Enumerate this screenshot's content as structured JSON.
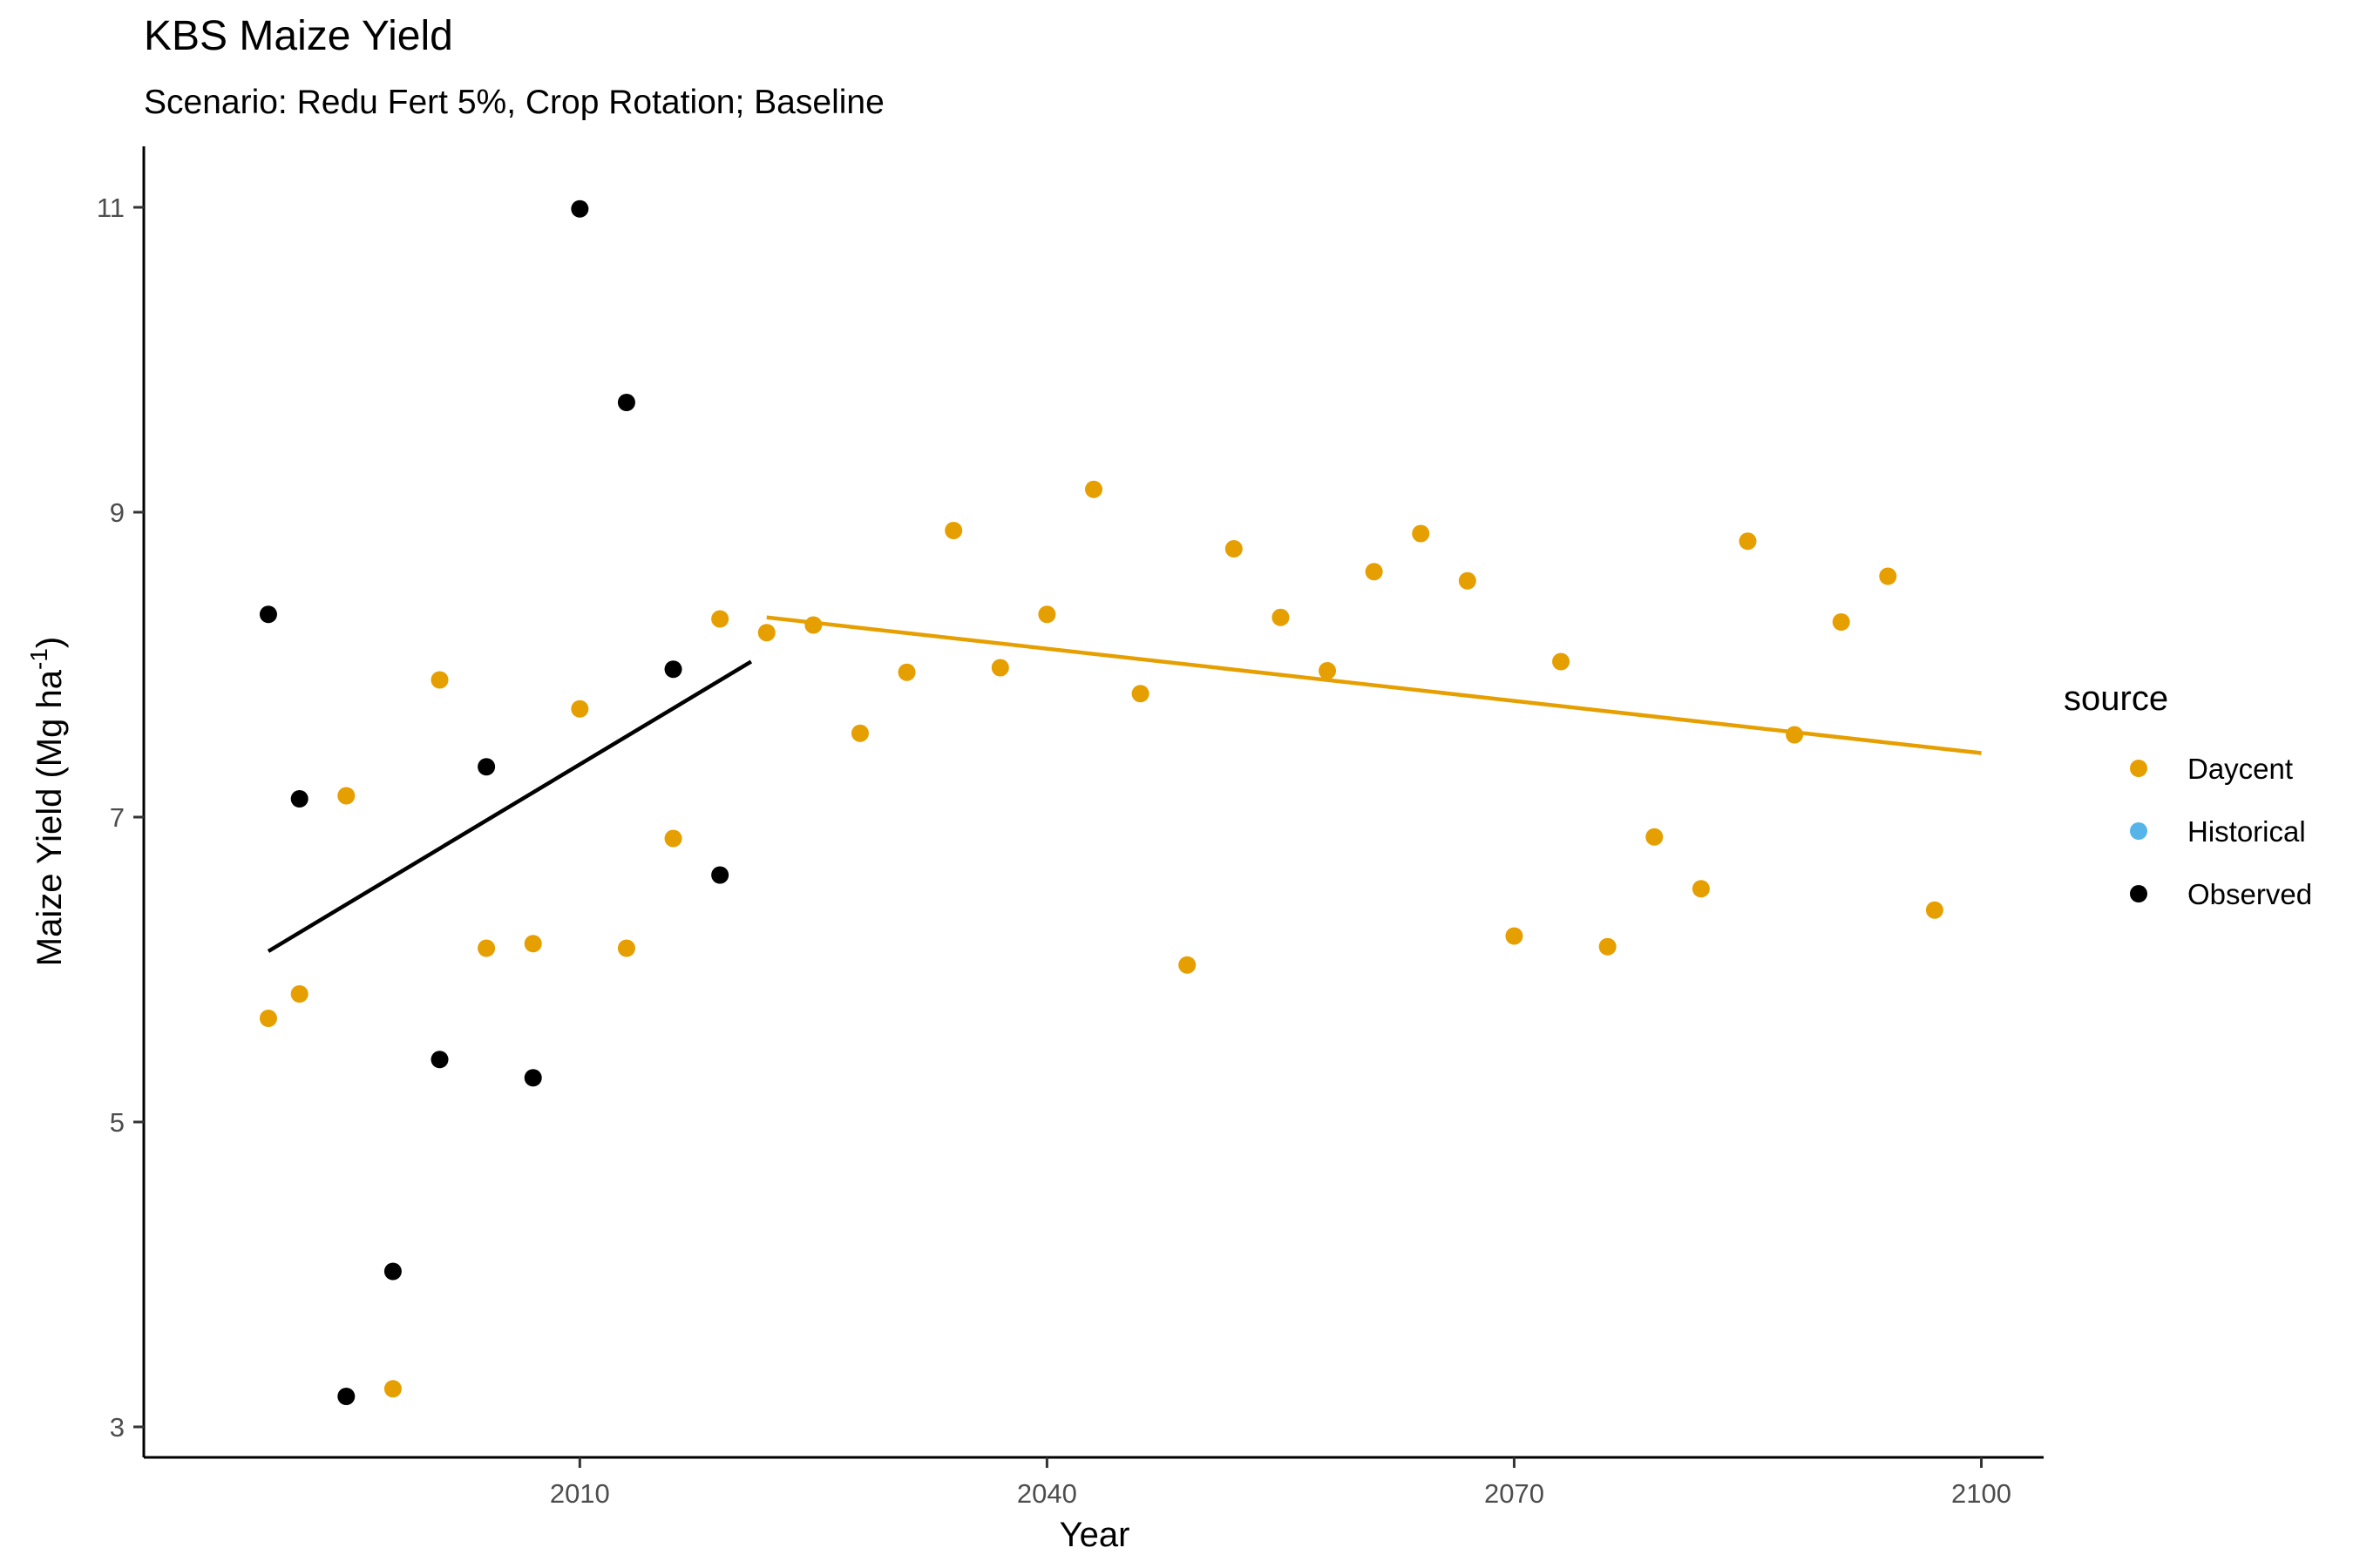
{
  "chart_data": {
    "type": "scatter",
    "title": "KBS Maize Yield",
    "subtitle": "Scenario: Redu Fert 5%, Crop Rotation; Baseline",
    "xlabel": "Year",
    "ylabel": "Maize Yield (Mg ha",
    "ylabel_sup": "-1",
    "ylabel_close": ")",
    "xlim": [
      1982,
      2104
    ],
    "ylim": [
      2.8,
      11.4
    ],
    "x_ticks": [
      2010,
      2040,
      2070,
      2100
    ],
    "y_ticks": [
      3,
      5,
      7,
      9,
      11
    ],
    "grid": false,
    "legend": {
      "title": "source",
      "position": "right",
      "entries": [
        {
          "name": "Daycent",
          "color": "#E69F00"
        },
        {
          "name": "Historical",
          "color": "#56B4E9"
        },
        {
          "name": "Observed",
          "color": "#000000"
        }
      ]
    },
    "series": [
      {
        "name": "Daycent",
        "color": "#E69F00",
        "points": [
          [
            1990,
            5.68
          ],
          [
            1992,
            5.84
          ],
          [
            1995,
            7.14
          ],
          [
            1998,
            3.25
          ],
          [
            2001,
            7.9
          ],
          [
            2004,
            6.14
          ],
          [
            2007,
            6.17
          ],
          [
            2010,
            7.71
          ],
          [
            2013,
            6.14
          ],
          [
            2016,
            6.86
          ],
          [
            2019,
            8.3
          ],
          [
            2022,
            8.21
          ],
          [
            2025,
            8.26
          ],
          [
            2028,
            7.55
          ],
          [
            2031,
            7.95
          ],
          [
            2034,
            8.88
          ],
          [
            2037,
            7.98
          ],
          [
            2040,
            8.33
          ],
          [
            2043,
            9.15
          ],
          [
            2046,
            7.81
          ],
          [
            2049,
            6.03
          ],
          [
            2052,
            8.76
          ],
          [
            2055,
            8.31
          ],
          [
            2058,
            7.96
          ],
          [
            2061,
            8.61
          ],
          [
            2064,
            8.86
          ],
          [
            2067,
            8.55
          ],
          [
            2070,
            6.22
          ],
          [
            2073,
            8.02
          ],
          [
            2076,
            6.15
          ],
          [
            2079,
            6.87
          ],
          [
            2082,
            6.53
          ],
          [
            2085,
            8.81
          ],
          [
            2088,
            7.54
          ],
          [
            2091,
            8.28
          ],
          [
            2094,
            8.58
          ],
          [
            2097,
            6.39
          ]
        ]
      },
      {
        "name": "Historical",
        "color": "#56B4E9",
        "points": []
      },
      {
        "name": "Observed",
        "color": "#000000",
        "points": [
          [
            1990,
            8.33
          ],
          [
            1992,
            7.12
          ],
          [
            1995,
            3.2
          ],
          [
            1998,
            4.02
          ],
          [
            2001,
            5.41
          ],
          [
            2004,
            7.33
          ],
          [
            2007,
            5.29
          ],
          [
            2010,
            10.99
          ],
          [
            2013,
            9.72
          ],
          [
            2016,
            7.97
          ],
          [
            2019,
            6.62
          ]
        ]
      }
    ],
    "trend_lines": [
      {
        "series": "Observed",
        "color": "#000000",
        "from": [
          1990,
          6.12
        ],
        "to": [
          2021,
          8.02
        ]
      },
      {
        "series": "Daycent",
        "color": "#E69F00",
        "from": [
          2022,
          8.31
        ],
        "to": [
          2100,
          7.42
        ]
      }
    ]
  }
}
